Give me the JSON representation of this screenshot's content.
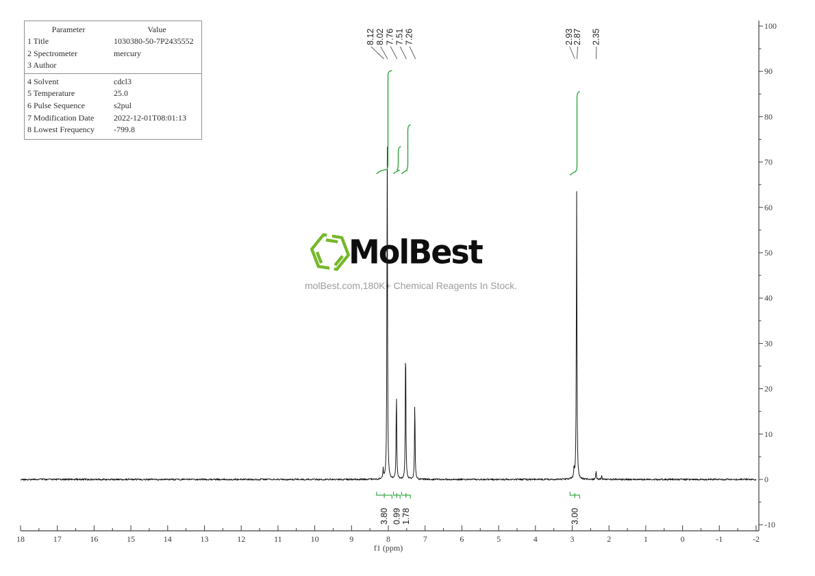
{
  "params": {
    "header": {
      "param": "Parameter",
      "value": "Value"
    },
    "rows": [
      {
        "label": "1 Title",
        "value": "1030380-50-7P2435552"
      },
      {
        "label": "2 Spectrometer",
        "value": "mercury"
      },
      {
        "label": "3 Author",
        "value": ""
      },
      {
        "label": "4 Solvent",
        "value": "cdcl3"
      },
      {
        "label": "5 Temperature",
        "value": "25.0"
      },
      {
        "label": "6 Pulse Sequence",
        "value": "s2pul"
      },
      {
        "label": "7 Modification Date",
        "value": "2022-12-01T08:01:13"
      },
      {
        "label": "8 Lowest Frequency",
        "value": "-799.8"
      }
    ]
  },
  "logo": {
    "name": "MolBest",
    "tagline": "molBest.com,180K+ Chemical Reagents In Stock.",
    "brand_green": "#76b82a"
  },
  "chart_data": {
    "type": "line",
    "xlabel": "f1 (ppm)",
    "x_range": [
      18,
      -2
    ],
    "y_range": [
      -10,
      100
    ],
    "x_ticks": [
      18,
      17,
      16,
      15,
      14,
      13,
      12,
      11,
      10,
      9,
      8,
      7,
      6,
      5,
      4,
      3,
      2,
      1,
      0,
      -1,
      -2
    ],
    "y_ticks": [
      100,
      90,
      80,
      70,
      60,
      50,
      40,
      30,
      20,
      10,
      0,
      -10
    ],
    "minor_x_step": 0.5,
    "minor_y_step": 5,
    "grid": false,
    "peaks": [
      {
        "ppm": 8.14,
        "intensity": 2.3
      },
      {
        "ppm": 8.03,
        "intensity": 77.0
      },
      {
        "ppm": 7.78,
        "intensity": 20.1
      },
      {
        "ppm": 7.53,
        "intensity": 31.3
      },
      {
        "ppm": 7.28,
        "intensity": 17.4
      },
      {
        "ppm": 2.95,
        "intensity": 2.4
      },
      {
        "ppm": 2.88,
        "intensity": 64.2
      },
      {
        "ppm": 2.35,
        "intensity": 1.9
      },
      {
        "ppm": 2.2,
        "intensity": 0.8
      }
    ],
    "peak_label_groups": [
      {
        "labels": [
          {
            "text": "8.12",
            "anchor_ppm": 8.48
          },
          {
            "text": "8.02",
            "anchor_ppm": 8.22
          },
          {
            "text": "7.76",
            "anchor_ppm": 7.95
          },
          {
            "text": "7.51",
            "anchor_ppm": 7.69
          },
          {
            "text": "7.26",
            "anchor_ppm": 7.43
          }
        ]
      },
      {
        "labels": [
          {
            "text": "2.93",
            "anchor_ppm": 3.08
          },
          {
            "text": "2.87",
            "anchor_ppm": 2.86
          },
          {
            "text": "2.35",
            "anchor_ppm": 2.35
          }
        ]
      }
    ],
    "integrals": [
      {
        "label": "3.80",
        "ppm_from": 8.32,
        "ppm_to": 7.9,
        "rise_ppm": 8.01,
        "base": 68.0,
        "top": 90.2
      },
      {
        "label": "0.99",
        "ppm_from": 7.86,
        "ppm_to": 7.68,
        "rise_ppm": 7.73,
        "base": 68.0,
        "top": 73.5
      },
      {
        "label": "1.78",
        "ppm_from": 7.64,
        "ppm_to": 7.4,
        "rise_ppm": 7.47,
        "base": 68.0,
        "top": 78.3
      },
      {
        "label": "3.00",
        "ppm_from": 3.06,
        "ppm_to": 2.8,
        "rise_ppm": 2.87,
        "base": 67.7,
        "top": 85.6
      }
    ],
    "colors": {
      "trace": "#161616",
      "integral": "#3aa94a",
      "axis": "#3c3c3c",
      "leader": "#555555"
    }
  }
}
